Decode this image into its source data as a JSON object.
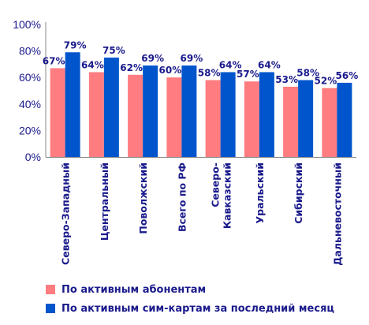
{
  "chart_data": {
    "type": "bar",
    "categories": [
      "Северо-Западный",
      "Центральный",
      "Поволжский",
      "Всего по РФ",
      "Северо-Кавказский",
      "Уральский",
      "Сибирский",
      "Дальневосточный"
    ],
    "category_lines": [
      [
        "Северо-Западный"
      ],
      [
        "Центральный"
      ],
      [
        "Поволжский"
      ],
      [
        "Всего по РФ"
      ],
      [
        "Северо-",
        "Кавказский"
      ],
      [
        "Уральский"
      ],
      [
        "Сибирский"
      ],
      [
        "Дальневосточный"
      ]
    ],
    "series": [
      {
        "name": "По активным абонентам",
        "color": "#FF7C80",
        "values": [
          67,
          64,
          62,
          60,
          58,
          57,
          53,
          52
        ]
      },
      {
        "name": "По активным сим-картам за последний месяц",
        "color": "#0055CC",
        "values": [
          79,
          75,
          69,
          69,
          64,
          64,
          58,
          56
        ]
      }
    ],
    "data_labels": [
      [
        "67%",
        "64%",
        "62%",
        "60%",
        "58%",
        "57%",
        "53%",
        "52%"
      ],
      [
        "79%",
        "75%",
        "69%",
        "69%",
        "64%",
        "64%",
        "58%",
        "56%"
      ]
    ],
    "yticks": [
      "0%",
      "20%",
      "40%",
      "60%",
      "80%",
      "100%"
    ],
    "ylim": [
      0,
      100
    ],
    "grid": false,
    "legend_position": "bottom-left",
    "title": "",
    "xlabel": "",
    "ylabel": ""
  }
}
